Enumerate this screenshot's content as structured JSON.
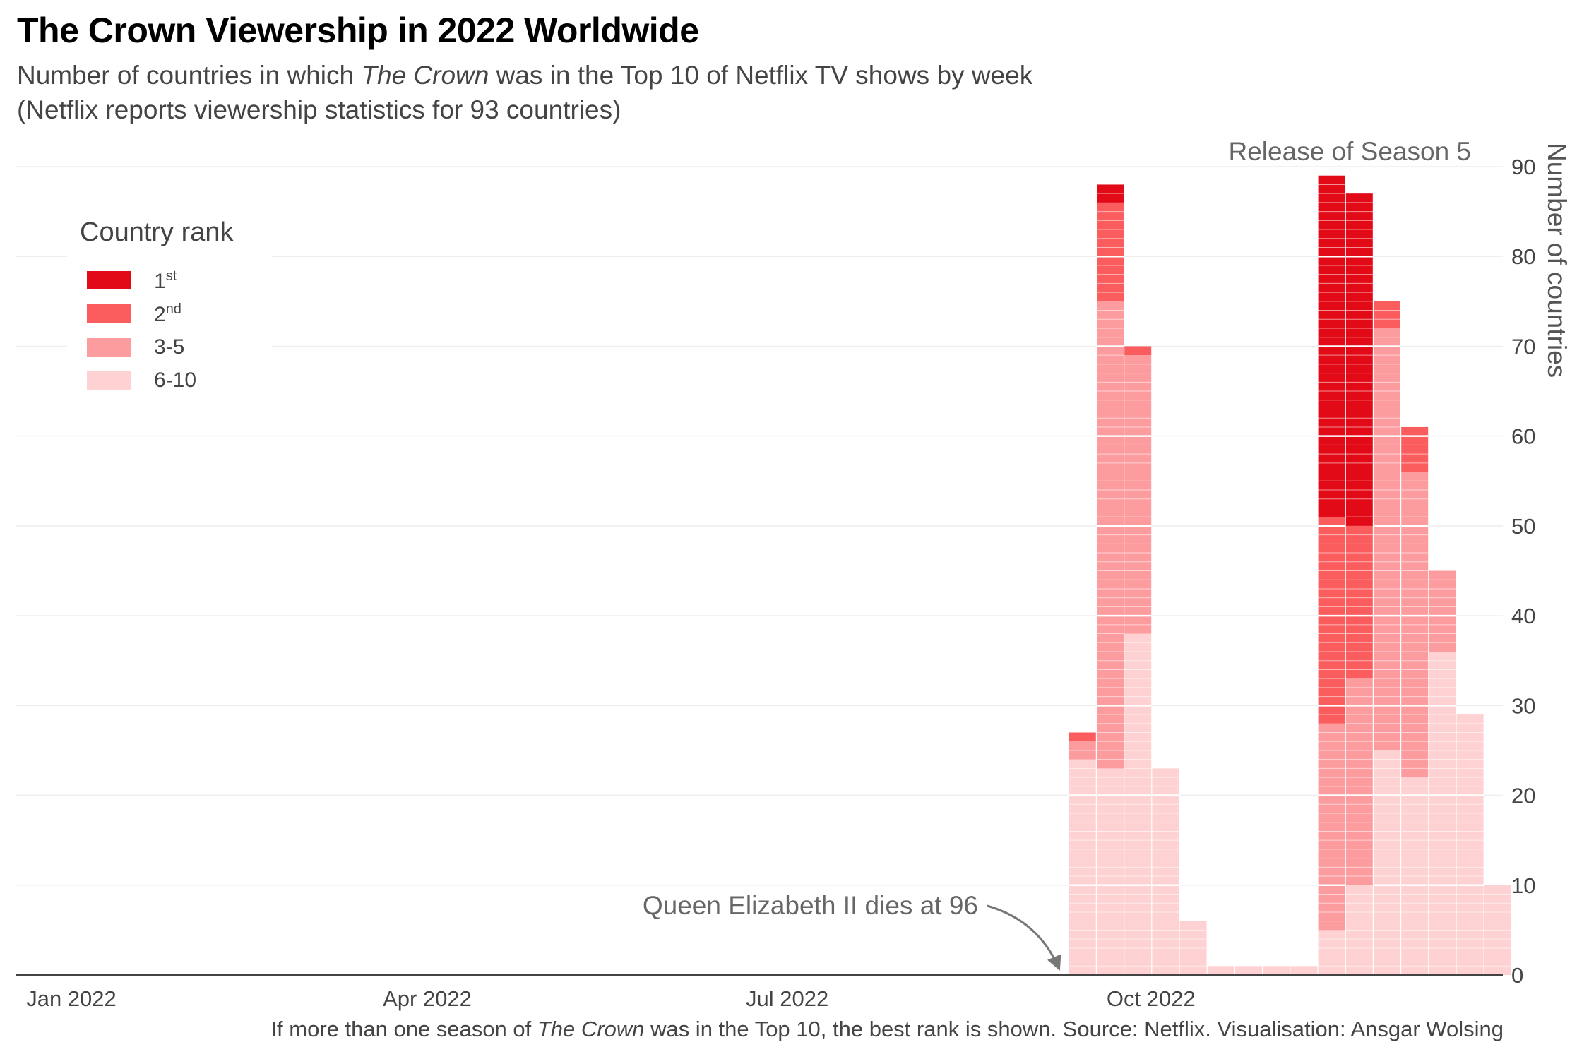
{
  "title": "The Crown Viewership in 2022 Worldwide",
  "subtitle": {
    "line1_pre": "Number of countries in which ",
    "line1_em": "The Crown",
    "line1_post": " was in the Top 10 of Netflix TV shows by week",
    "line2": "(Netflix reports viewership statistics for 93 countries)"
  },
  "caption": {
    "pre": "If more than one season of ",
    "em": "The Crown",
    "post": " was in the Top 10, the best rank is shown. Source: Netflix. Visualisation: Ansgar Wolsing"
  },
  "legend": {
    "title": "Country rank",
    "items": [
      {
        "base": "1",
        "sup": "st",
        "color": "#e30a17"
      },
      {
        "base": "2",
        "sup": "nd",
        "color": "#fb5c5e"
      },
      {
        "base": "3-5",
        "sup": "",
        "color": "#fd9c9f"
      },
      {
        "base": "6-10",
        "sup": "",
        "color": "#fed2d3"
      }
    ]
  },
  "annotations": {
    "queen": "Queen Elizabeth II dies at 96",
    "season5": "Release of Season 5"
  },
  "chart_data": {
    "type": "bar",
    "stacked": true,
    "title": "The Crown Viewership in 2022 Worldwide",
    "xlabel": "",
    "ylabel": "Number of countries",
    "ylim": [
      0,
      90
    ],
    "yticks": [
      0,
      10,
      20,
      30,
      40,
      50,
      60,
      70,
      80,
      90
    ],
    "xticks": [
      "Jan 2022",
      "Apr 2022",
      "Jul 2022",
      "Oct 2022"
    ],
    "y_axis_position": "right",
    "grid": true,
    "legend_position": "top-left",
    "categories": [
      "2022-09-11",
      "2022-09-18",
      "2022-09-25",
      "2022-10-02",
      "2022-10-09",
      "2022-10-16",
      "2022-10-23",
      "2022-10-30",
      "2022-11-06",
      "2022-11-13",
      "2022-11-20",
      "2022-11-27",
      "2022-12-04",
      "2022-12-11",
      "2022-12-18",
      "2022-12-25"
    ],
    "series": [
      {
        "name": "1st",
        "color": "#e30a17",
        "values": [
          0,
          2,
          0,
          0,
          0,
          0,
          0,
          0,
          0,
          38,
          37,
          0,
          0,
          0,
          0,
          0
        ]
      },
      {
        "name": "2nd",
        "color": "#fb5c5e",
        "values": [
          1,
          11,
          1,
          0,
          0,
          0,
          0,
          0,
          0,
          23,
          17,
          3,
          5,
          0,
          0,
          0
        ]
      },
      {
        "name": "3-5",
        "color": "#fd9c9f",
        "values": [
          2,
          52,
          31,
          0,
          0,
          0,
          0,
          0,
          0,
          23,
          23,
          47,
          34,
          9,
          0,
          0
        ]
      },
      {
        "name": "6-10",
        "color": "#fed2d3",
        "values": [
          24,
          23,
          38,
          23,
          6,
          1,
          1,
          1,
          1,
          5,
          10,
          25,
          22,
          36,
          29,
          10
        ]
      }
    ]
  }
}
